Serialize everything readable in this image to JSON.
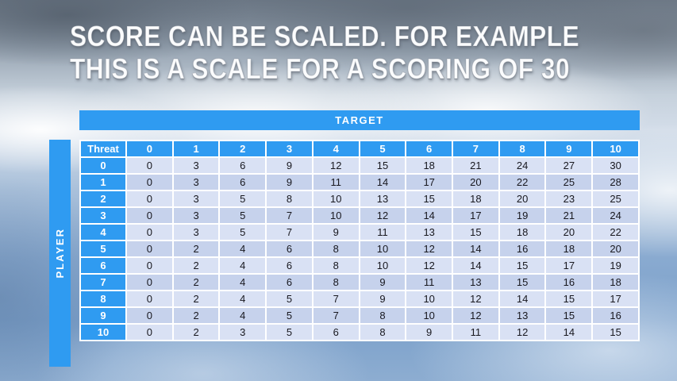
{
  "slide": {
    "title_line1": "SCORE CAN BE SCALED. FOR EXAMPLE",
    "title_line2": "THIS IS A SCALE FOR A SCORING OF 30"
  },
  "table": {
    "target_label": "TARGET",
    "player_label": "PLAYER",
    "corner_label": "Threat",
    "column_headers": [
      "0",
      "1",
      "2",
      "3",
      "4",
      "5",
      "6",
      "7",
      "8",
      "9",
      "10"
    ],
    "rows": [
      {
        "threat": "0",
        "values": [
          "0",
          "3",
          "6",
          "9",
          "12",
          "15",
          "18",
          "21",
          "24",
          "27",
          "30"
        ]
      },
      {
        "threat": "1",
        "values": [
          "0",
          "3",
          "6",
          "9",
          "11",
          "14",
          "17",
          "20",
          "22",
          "25",
          "28"
        ]
      },
      {
        "threat": "2",
        "values": [
          "0",
          "3",
          "5",
          "8",
          "10",
          "13",
          "15",
          "18",
          "20",
          "23",
          "25"
        ]
      },
      {
        "threat": "3",
        "values": [
          "0",
          "3",
          "5",
          "7",
          "10",
          "12",
          "14",
          "17",
          "19",
          "21",
          "24"
        ]
      },
      {
        "threat": "4",
        "values": [
          "0",
          "3",
          "5",
          "7",
          "9",
          "11",
          "13",
          "15",
          "18",
          "20",
          "22"
        ]
      },
      {
        "threat": "5",
        "values": [
          "0",
          "2",
          "4",
          "6",
          "8",
          "10",
          "12",
          "14",
          "16",
          "18",
          "20"
        ]
      },
      {
        "threat": "6",
        "values": [
          "0",
          "2",
          "4",
          "6",
          "8",
          "10",
          "12",
          "14",
          "15",
          "17",
          "19"
        ]
      },
      {
        "threat": "7",
        "values": [
          "0",
          "2",
          "4",
          "6",
          "8",
          "9",
          "11",
          "13",
          "15",
          "16",
          "18"
        ]
      },
      {
        "threat": "8",
        "values": [
          "0",
          "2",
          "4",
          "5",
          "7",
          "9",
          "10",
          "12",
          "14",
          "15",
          "17"
        ]
      },
      {
        "threat": "9",
        "values": [
          "0",
          "2",
          "4",
          "5",
          "7",
          "8",
          "10",
          "12",
          "13",
          "15",
          "16"
        ]
      },
      {
        "threat": "10",
        "values": [
          "0",
          "2",
          "3",
          "5",
          "6",
          "8",
          "9",
          "11",
          "12",
          "14",
          "15"
        ]
      }
    ]
  },
  "colors": {
    "accent_blue": "#2f9bf1",
    "row_even": "#d9e1f4",
    "row_odd": "#c6d2ec",
    "cell_text": "#18181f",
    "grid_line": "#ffffff"
  }
}
